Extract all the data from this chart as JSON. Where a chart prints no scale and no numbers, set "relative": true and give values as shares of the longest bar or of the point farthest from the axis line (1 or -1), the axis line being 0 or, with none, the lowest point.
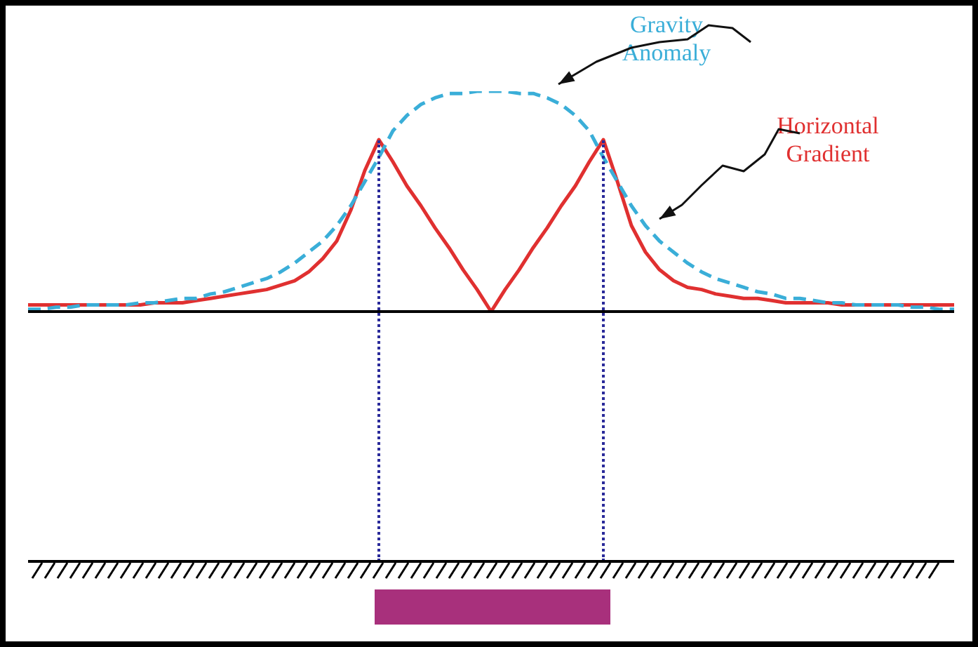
{
  "chart_data": {
    "type": "line",
    "relative": true,
    "legend": false,
    "marker": "none",
    "categories": [
      null,
      null,
      null,
      null,
      null,
      null,
      null,
      null,
      null,
      null,
      null,
      null,
      null,
      null,
      null,
      null,
      null,
      null,
      null,
      null,
      null,
      null,
      null,
      null,
      null,
      null,
      null,
      null,
      null,
      null,
      null,
      null,
      null,
      null,
      null,
      null,
      null,
      null,
      null,
      null,
      null,
      null,
      null,
      null,
      null,
      null,
      null,
      null,
      null,
      null,
      null,
      null,
      null,
      null,
      null,
      null,
      null,
      null,
      null,
      null,
      null,
      null,
      null,
      null,
      null,
      null,
      null
    ],
    "series": [
      {
        "name": "Gravity Anomaly",
        "color": "#3aaed8",
        "line_style": "dashed",
        "values": [
          0.01,
          0.01,
          0.02,
          0.02,
          0.03,
          0.03,
          0.03,
          0.03,
          0.04,
          0.04,
          0.05,
          0.06,
          0.06,
          0.08,
          0.09,
          0.11,
          0.13,
          0.15,
          0.18,
          0.22,
          0.27,
          0.32,
          0.39,
          0.48,
          0.59,
          0.7,
          0.82,
          0.89,
          0.94,
          0.97,
          0.99,
          0.99,
          1.0,
          1.0,
          1.0,
          0.99,
          0.99,
          0.97,
          0.94,
          0.89,
          0.82,
          0.7,
          0.59,
          0.48,
          0.39,
          0.32,
          0.27,
          0.22,
          0.18,
          0.15,
          0.13,
          0.11,
          0.09,
          0.08,
          0.06,
          0.06,
          0.05,
          0.04,
          0.04,
          0.03,
          0.03,
          0.03,
          0.03,
          0.02,
          0.02,
          0.01,
          0.01
        ]
      },
      {
        "name": "Horizontal Gradient",
        "color": "#e03030",
        "line_style": "solid",
        "values": [
          0.03,
          0.03,
          0.03,
          0.03,
          0.03,
          0.03,
          0.03,
          0.03,
          0.03,
          0.04,
          0.04,
          0.04,
          0.05,
          0.06,
          0.07,
          0.08,
          0.09,
          0.1,
          0.12,
          0.14,
          0.18,
          0.24,
          0.32,
          0.46,
          0.64,
          0.78,
          0.68,
          0.57,
          0.48,
          0.38,
          0.29,
          0.19,
          0.1,
          0,
          0.1,
          0.19,
          0.29,
          0.38,
          0.48,
          0.57,
          0.68,
          0.78,
          0.59,
          0.39,
          0.27,
          0.19,
          0.14,
          0.11,
          0.1,
          0.08,
          0.07,
          0.06,
          0.06,
          0.05,
          0.04,
          0.04,
          0.04,
          0.04,
          0.03,
          0.03,
          0.03,
          0.03,
          0.03,
          0.03,
          0.03,
          0.03,
          0.03
        ]
      }
    ]
  }
}
